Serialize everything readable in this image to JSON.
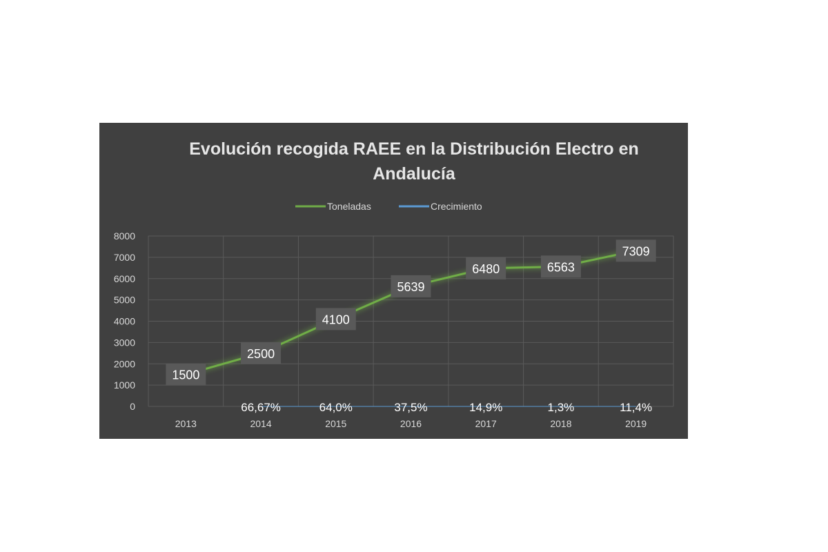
{
  "chart_data": {
    "type": "line",
    "title_lines": [
      "Evolución recogida RAEE en la Distribución Electro en",
      "Andalucía"
    ],
    "categories": [
      "2013",
      "2014",
      "2015",
      "2016",
      "2017",
      "2018",
      "2019"
    ],
    "series": [
      {
        "name": "Toneladas",
        "color": "#70ad47",
        "values": [
          1500,
          2500,
          4100,
          5639,
          6480,
          6563,
          7309
        ],
        "labels": [
          "1500",
          "2500",
          "4100",
          "5639",
          "6480",
          "6563",
          "7309"
        ]
      },
      {
        "name": "Crecimiento",
        "color": "#5b9bd5",
        "values": [
          null,
          66.67,
          64.0,
          37.5,
          14.9,
          1.3,
          11.4
        ],
        "labels": [
          "",
          "66,67%",
          "64,0%",
          "37,5%",
          "14,9%",
          "1,3%",
          "11,4%"
        ]
      }
    ],
    "yticks": [
      "0",
      "1000",
      "2000",
      "3000",
      "4000",
      "5000",
      "6000",
      "7000",
      "8000"
    ],
    "ylim": [
      0,
      8000
    ],
    "grid": true,
    "legend_position": "top"
  }
}
